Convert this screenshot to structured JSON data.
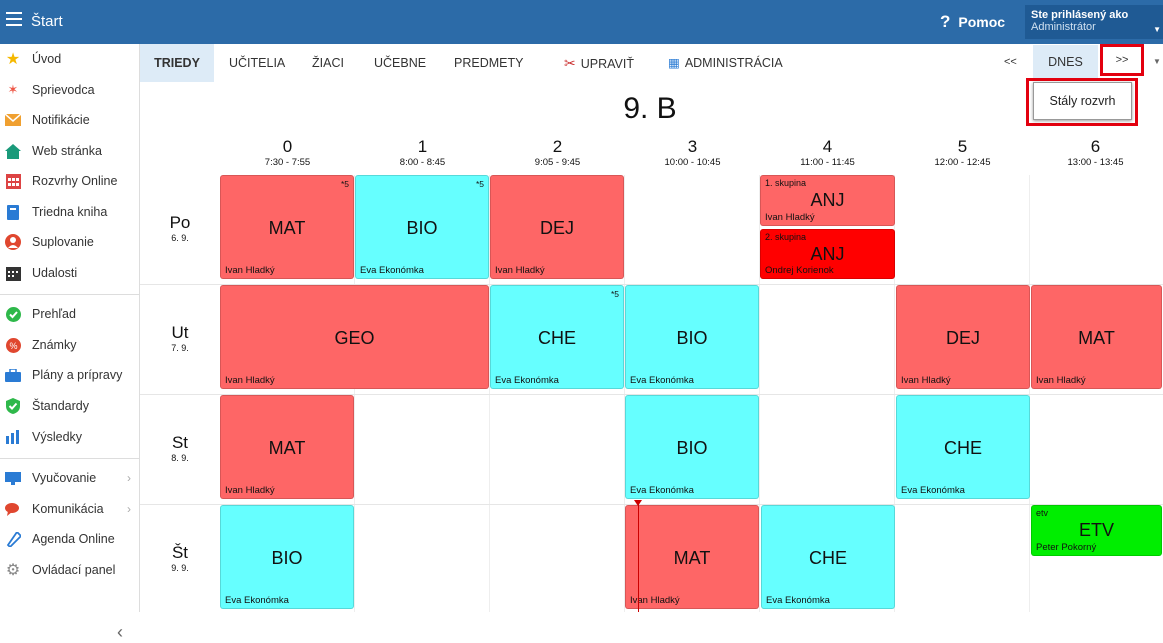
{
  "header": {
    "title": "Štart",
    "help": "Pomoc",
    "user_line1": "Ste prihlásený ako",
    "user_line2": "Administrátor"
  },
  "sidebar": {
    "items": [
      {
        "label": "Úvod",
        "icon": "star-icon"
      },
      {
        "label": "Sprievodca",
        "icon": "wand-icon"
      },
      {
        "label": "Notifikácie",
        "icon": "envelope-icon"
      },
      {
        "label": "Web stránka",
        "icon": "home-icon"
      },
      {
        "label": "Rozvrhy Online",
        "icon": "calendar-icon"
      },
      {
        "label": "Triedna kniha",
        "icon": "book-icon"
      },
      {
        "label": "Suplovanie",
        "icon": "person-icon"
      },
      {
        "label": "Udalosti",
        "icon": "event-calendar-icon"
      },
      {
        "label": "Prehľad",
        "icon": "check-circle-icon"
      },
      {
        "label": "Známky",
        "icon": "grades-icon"
      },
      {
        "label": "Plány a prípravy",
        "icon": "briefcase-icon"
      },
      {
        "label": "Štandardy",
        "icon": "shield-check-icon"
      },
      {
        "label": "Výsledky",
        "icon": "bar-chart-icon"
      },
      {
        "label": "Vyučovanie",
        "icon": "teaching-icon"
      },
      {
        "label": "Komunikácia",
        "icon": "chat-icon"
      },
      {
        "label": "Agenda Online",
        "icon": "pen-icon"
      },
      {
        "label": "Ovládací panel",
        "icon": "gear-icon"
      }
    ]
  },
  "tabs": {
    "triedy": "TRIEDY",
    "ucitelia": "UČITELIA",
    "ziaci": "ŽIACI",
    "ucebne": "UČEBNE",
    "predmety": "PREDMETY",
    "upravit": "UPRAVIŤ",
    "administracia": "ADMINISTRÁCIA"
  },
  "nav": {
    "prev": "<<",
    "today": "DNES",
    "next": ">>",
    "popup": "Stály rozvrh"
  },
  "timetable": {
    "class_name": "9. B",
    "periods": [
      {
        "n": "0",
        "time": "7:30 - 7:55"
      },
      {
        "n": "1",
        "time": "8:00 - 8:45"
      },
      {
        "n": "2",
        "time": "9:05 - 9:45"
      },
      {
        "n": "3",
        "time": "10:00 - 10:45"
      },
      {
        "n": "4",
        "time": "11:00 - 11:45"
      },
      {
        "n": "5",
        "time": "12:00 - 12:45"
      },
      {
        "n": "6",
        "time": "13:00 - 13:45"
      }
    ],
    "days": [
      {
        "d": "Po",
        "date": "6. 9."
      },
      {
        "d": "Ut",
        "date": "7. 9."
      },
      {
        "d": "St",
        "date": "8. 9."
      },
      {
        "d": "Št",
        "date": "9. 9."
      }
    ],
    "lessons": {
      "po0": {
        "subj": "MAT",
        "teacher": "Ivan Hladký",
        "mark": "*5"
      },
      "po1": {
        "subj": "BIO",
        "teacher": "Eva Ekonómka",
        "mark": "*5"
      },
      "po2": {
        "subj": "DEJ",
        "teacher": "Ivan Hladký"
      },
      "po4a": {
        "subj": "ANJ",
        "group": "1. skupina",
        "teacher": "Ivan Hladký"
      },
      "po4b": {
        "subj": "ANJ",
        "group": "2. skupina",
        "teacher": "Ondrej Korienok"
      },
      "ut0": {
        "subj": "GEO",
        "teacher": "Ivan Hladký"
      },
      "ut2": {
        "subj": "CHE",
        "teacher": "Eva Ekonómka",
        "mark": "*5"
      },
      "ut3": {
        "subj": "BIO",
        "teacher": "Eva Ekonómka"
      },
      "ut5": {
        "subj": "DEJ",
        "teacher": "Ivan Hladký"
      },
      "ut6": {
        "subj": "MAT",
        "teacher": "Ivan Hladký"
      },
      "st0": {
        "subj": "MAT",
        "teacher": "Ivan Hladký"
      },
      "st3": {
        "subj": "BIO",
        "teacher": "Eva Ekonómka"
      },
      "st5": {
        "subj": "CHE",
        "teacher": "Eva Ekonómka"
      },
      "st0b": {
        "subj": "BIO",
        "teacher": "Eva Ekonómka"
      },
      "st3b": {
        "subj": "MAT",
        "teacher": "Ivan Hladký"
      },
      "st4b": {
        "subj": "CHE",
        "teacher": "Eva Ekonómka"
      },
      "st6b": {
        "subj": "ETV",
        "group": "etv",
        "teacher": "Peter Pokorný"
      }
    }
  },
  "colors": {
    "red_lesson": "#fe6666",
    "cyan_lesson": "#66ffff",
    "group_red": "#ff0000",
    "green_lesson": "#00ee00",
    "header_blue": "#2c6ba8",
    "highlight": "#e3000f"
  }
}
